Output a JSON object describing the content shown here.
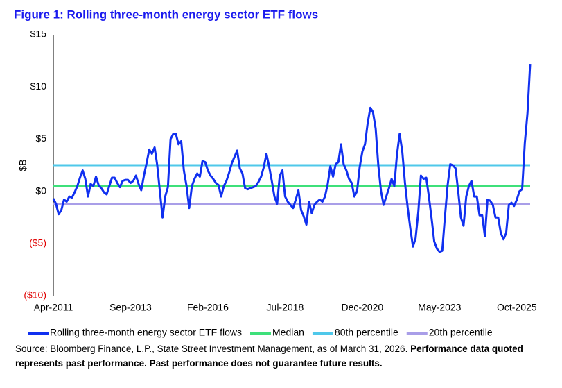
{
  "chart_data": {
    "type": "line",
    "title": "Figure 1: Rolling three-month energy sector ETF flows",
    "y_label": "$B",
    "categories": [
      "Apr-2011",
      null,
      null,
      null,
      null,
      null,
      null,
      null,
      null,
      null,
      null,
      null,
      null,
      null,
      null,
      null,
      null,
      null,
      null,
      null,
      null,
      null,
      null,
      null,
      null,
      null,
      null,
      null,
      null,
      "Sep-2013",
      null,
      null,
      null,
      null,
      null,
      null,
      null,
      null,
      null,
      null,
      null,
      null,
      null,
      null,
      null,
      null,
      null,
      null,
      null,
      null,
      null,
      null,
      null,
      null,
      null,
      null,
      null,
      null,
      "Feb-2016",
      null,
      null,
      null,
      null,
      null,
      null,
      null,
      null,
      null,
      null,
      null,
      null,
      null,
      null,
      null,
      null,
      null,
      null,
      null,
      null,
      null,
      null,
      null,
      null,
      null,
      null,
      null,
      null,
      "Jul-2018",
      null,
      null,
      null,
      null,
      null,
      null,
      null,
      null,
      null,
      null,
      null,
      null,
      null,
      null,
      null,
      null,
      null,
      null,
      null,
      null,
      null,
      null,
      null,
      null,
      null,
      null,
      null,
      null,
      "Dec-2020",
      null,
      null,
      null,
      null,
      null,
      null,
      null,
      null,
      null,
      null,
      null,
      null,
      null,
      null,
      null,
      null,
      null,
      null,
      null,
      null,
      null,
      null,
      null,
      null,
      null,
      null,
      null,
      null,
      "May-2023",
      null,
      null,
      null,
      null,
      null,
      null,
      null,
      null,
      null,
      null,
      null,
      null,
      null,
      null,
      null,
      null,
      null,
      null,
      null,
      null,
      null,
      null,
      null,
      null,
      null,
      null,
      null,
      null,
      "Oct-2025",
      null,
      null,
      null,
      null,
      null
    ],
    "series": [
      {
        "name": "Rolling three-month energy sector ETF flows",
        "color": "#1030f0",
        "values": [
          -0.7,
          -1.2,
          -2.2,
          -1.8,
          -0.8,
          -1.0,
          -0.5,
          -0.6,
          -0.1,
          0.5,
          1.3,
          2.0,
          1.2,
          -0.5,
          0.7,
          0.5,
          1.4,
          0.6,
          0.3,
          -0.1,
          -0.3,
          0.5,
          1.3,
          1.3,
          0.8,
          0.4,
          1.0,
          1.1,
          1.1,
          0.8,
          1.0,
          1.5,
          0.7,
          0.1,
          1.5,
          2.7,
          4.0,
          3.6,
          4.2,
          2.5,
          0.0,
          -2.5,
          -0.5,
          0.4,
          5.0,
          5.5,
          5.5,
          4.5,
          4.8,
          2.0,
          0.5,
          -1.6,
          0.5,
          1.2,
          1.7,
          1.4,
          2.9,
          2.8,
          2.0,
          1.5,
          1.2,
          0.8,
          0.6,
          -0.5,
          0.5,
          1.0,
          1.8,
          2.7,
          3.3,
          3.9,
          2.2,
          1.7,
          0.3,
          0.2,
          0.3,
          0.4,
          0.5,
          0.9,
          1.4,
          2.3,
          3.6,
          2.4,
          1.0,
          -0.5,
          -1.2,
          1.5,
          2.0,
          -0.5,
          -1.0,
          -1.3,
          -1.6,
          -0.8,
          0.1,
          -1.8,
          -2.4,
          -3.2,
          -1.0,
          -2.1,
          -1.3,
          -1.0,
          -0.8,
          -1.0,
          -0.5,
          0.7,
          2.4,
          1.4,
          2.6,
          2.8,
          4.5,
          2.6,
          2.0,
          1.2,
          0.8,
          -0.5,
          0.0,
          2.3,
          3.8,
          4.5,
          6.5,
          8.0,
          7.6,
          6.0,
          2.5,
          0.0,
          -1.3,
          -0.5,
          0.3,
          1.2,
          0.5,
          3.5,
          5.5,
          3.8,
          0.8,
          -1.5,
          -3.5,
          -5.3,
          -4.5,
          -2.0,
          1.5,
          1.2,
          1.3,
          -0.5,
          -2.6,
          -4.8,
          -5.5,
          -5.8,
          -5.7,
          -2.5,
          0.5,
          2.6,
          2.5,
          2.2,
          0.0,
          -2.5,
          -3.3,
          -0.5,
          0.5,
          1.0,
          -0.5,
          -0.5,
          -2.3,
          -2.3,
          -4.3,
          -0.8,
          -0.9,
          -1.3,
          -2.5,
          -2.5,
          -4.0,
          -4.6,
          -4.0,
          -1.3,
          -1.1,
          -1.4,
          -0.8,
          0.0,
          0.2,
          4.6,
          7.5,
          12.2
        ]
      },
      {
        "name": "Median",
        "color": "#3ee07a",
        "value": 0.5
      },
      {
        "name": "80th percentile",
        "color": "#4fc8ea",
        "value": 2.5
      },
      {
        "name": "20th percentile",
        "color": "#a99ee8",
        "value": -1.2
      }
    ],
    "ylim": [
      -10,
      15
    ],
    "yticks": [
      {
        "value": -10,
        "label": "($10)"
      },
      {
        "value": -5,
        "label": "($5)"
      },
      {
        "value": 0,
        "label": "$0"
      },
      {
        "value": 5,
        "label": "$5"
      },
      {
        "value": 10,
        "label": "$10"
      },
      {
        "value": 15,
        "label": "$15"
      }
    ],
    "negative_tick_color": "#e00000",
    "grid": false,
    "legend": "bottom",
    "footnote": {
      "text": "Source: Bloomberg Finance, L.P., State Street Investment Management, as of March 31, 2026.",
      "emphasis": "Performance data quoted represents past performance. Past performance does not guarantee future results."
    }
  }
}
